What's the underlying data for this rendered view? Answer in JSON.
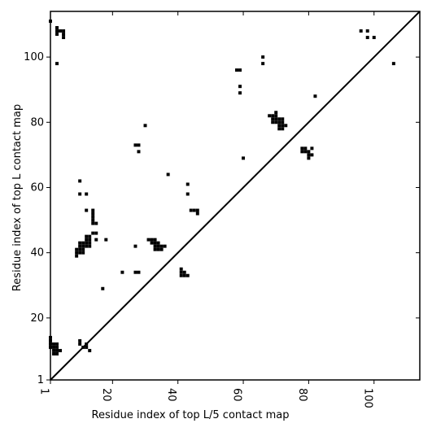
{
  "chart_data": {
    "type": "heatmap",
    "title": "",
    "xlabel": "Residue index of top L/5 contact map",
    "ylabel": "Residue index of top L contact map",
    "xlim": [
      1,
      114
    ],
    "ylim": [
      1,
      114
    ],
    "x_ticks": [
      1,
      20,
      40,
      60,
      80,
      100
    ],
    "x_tick_labels": [
      "1",
      "20",
      "40",
      "60",
      "80",
      "100"
    ],
    "y_ticks": [
      1,
      20,
      40,
      60,
      80,
      100
    ],
    "y_tick_labels": [
      "1",
      "20",
      "40",
      "60",
      "80",
      "100"
    ],
    "diagonal": true,
    "grid": false,
    "contact_color": "#000000",
    "background_color": "#ffffff",
    "top_L_contacts": [
      [
        1,
        111
      ],
      [
        3,
        109
      ],
      [
        3,
        108
      ],
      [
        3,
        107
      ],
      [
        4,
        108
      ],
      [
        5,
        108
      ],
      [
        5,
        107
      ],
      [
        5,
        106
      ],
      [
        3,
        98
      ],
      [
        10,
        62
      ],
      [
        10,
        58
      ],
      [
        12,
        58
      ],
      [
        12,
        53
      ],
      [
        14,
        53
      ],
      [
        14,
        52
      ],
      [
        14,
        51
      ],
      [
        14,
        50
      ],
      [
        14,
        49
      ],
      [
        15,
        49
      ],
      [
        14,
        46
      ],
      [
        15,
        46
      ],
      [
        15,
        44
      ],
      [
        18,
        44
      ],
      [
        17,
        29
      ],
      [
        23,
        34
      ],
      [
        27,
        42
      ],
      [
        27,
        34
      ],
      [
        28,
        34
      ],
      [
        9,
        41
      ],
      [
        9,
        40
      ],
      [
        9,
        39
      ],
      [
        10,
        43
      ],
      [
        10,
        42
      ],
      [
        10,
        41
      ],
      [
        10,
        40
      ],
      [
        11,
        43
      ],
      [
        11,
        42
      ],
      [
        11,
        41
      ],
      [
        11,
        40
      ],
      [
        12,
        45
      ],
      [
        12,
        44
      ],
      [
        12,
        43
      ],
      [
        12,
        42
      ],
      [
        13,
        45
      ],
      [
        13,
        44
      ],
      [
        13,
        43
      ],
      [
        13,
        42
      ],
      [
        27,
        73
      ],
      [
        28,
        73
      ],
      [
        28,
        71
      ],
      [
        30,
        79
      ],
      [
        37,
        64
      ],
      [
        31,
        44
      ],
      [
        32,
        44
      ],
      [
        32,
        43
      ],
      [
        33,
        44
      ],
      [
        33,
        43
      ],
      [
        33,
        42
      ],
      [
        33,
        41
      ],
      [
        34,
        43
      ],
      [
        34,
        42
      ],
      [
        34,
        41
      ],
      [
        35,
        42
      ],
      [
        35,
        41
      ],
      [
        36,
        42
      ],
      [
        41,
        35
      ],
      [
        41,
        34
      ],
      [
        41,
        33
      ],
      [
        42,
        34
      ],
      [
        42,
        33
      ],
      [
        43,
        33
      ],
      [
        43,
        61
      ],
      [
        43,
        58
      ],
      [
        44,
        53
      ],
      [
        45,
        53
      ],
      [
        46,
        53
      ],
      [
        46,
        52
      ],
      [
        58,
        96
      ],
      [
        59,
        96
      ],
      [
        59,
        91
      ],
      [
        59,
        89
      ],
      [
        60,
        69
      ],
      [
        66,
        100
      ],
      [
        66,
        98
      ],
      [
        68,
        82
      ],
      [
        69,
        82
      ],
      [
        69,
        81
      ],
      [
        69,
        80
      ],
      [
        70,
        83
      ],
      [
        70,
        82
      ],
      [
        70,
        81
      ],
      [
        70,
        80
      ],
      [
        71,
        81
      ],
      [
        71,
        80
      ],
      [
        71,
        79
      ],
      [
        71,
        78
      ],
      [
        72,
        81
      ],
      [
        72,
        80
      ],
      [
        72,
        79
      ],
      [
        72,
        78
      ],
      [
        73,
        79
      ],
      [
        78,
        72
      ],
      [
        78,
        71
      ],
      [
        79,
        72
      ],
      [
        79,
        71
      ],
      [
        80,
        71
      ],
      [
        80,
        70
      ],
      [
        80,
        69
      ],
      [
        81,
        72
      ],
      [
        81,
        70
      ],
      [
        82,
        88
      ],
      [
        96,
        108
      ],
      [
        98,
        108
      ],
      [
        98,
        106
      ],
      [
        100,
        106
      ],
      [
        106,
        98
      ]
    ],
    "top_L5_contacts": [
      [
        1,
        14
      ],
      [
        1,
        13
      ],
      [
        1,
        12
      ],
      [
        1,
        11
      ],
      [
        2,
        12
      ],
      [
        2,
        11
      ],
      [
        2,
        10
      ],
      [
        2,
        9
      ],
      [
        3,
        12
      ],
      [
        3,
        11
      ],
      [
        3,
        10
      ],
      [
        3,
        9
      ],
      [
        4,
        10
      ],
      [
        10,
        13
      ],
      [
        10,
        12
      ],
      [
        11,
        11
      ],
      [
        12,
        12
      ],
      [
        12,
        11
      ],
      [
        13,
        10
      ]
    ]
  }
}
